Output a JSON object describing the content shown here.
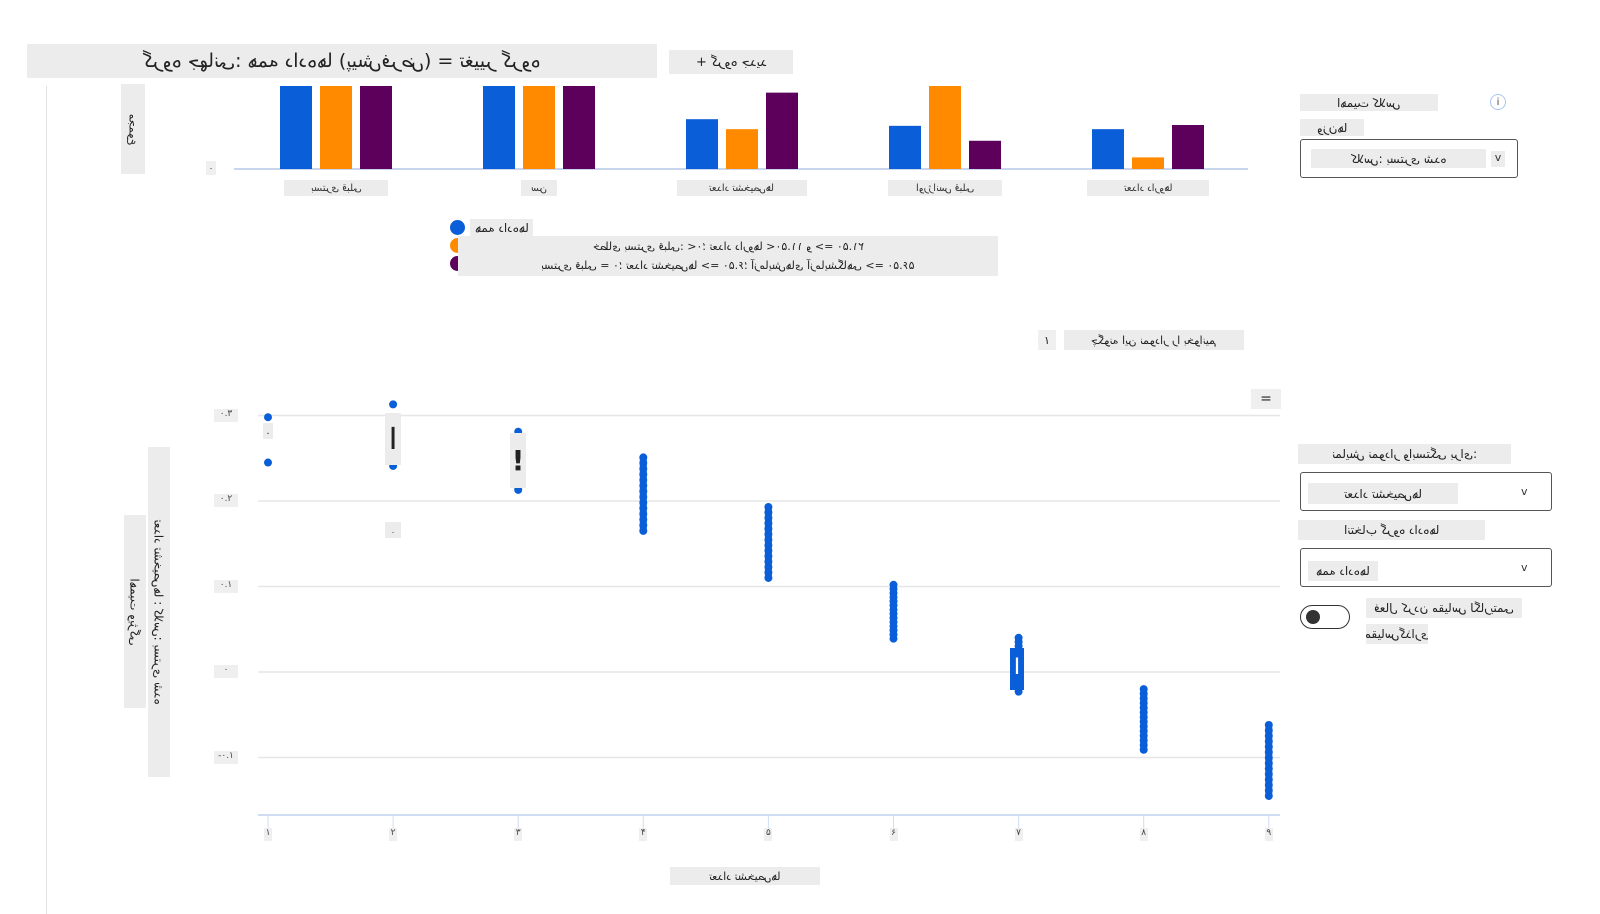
{
  "header": {
    "title": "گروه جهانی: همه داده‌ها (پیش‌فرض) = تغییر گروه",
    "new_group_label": "+ گروه جدید"
  },
  "top_chart": {
    "y_axis_label": "مجموع",
    "zero_label": "۰",
    "legend": [
      {
        "label": "همه داده‌ها",
        "color": "#0a5fd9"
      },
      {
        "label": "خطای بستری قبلی: >۰؛ تعداد داروها >۱۱.۵۰ و <= ۲۱.۵۰",
        "color": "#ff8a00"
      },
      {
        "label": "بستری قبلی = ۰؛ تعداد تشخیص‌ها <= ۶.۵۰؛ آزمایش‌های آزمایشگاهی <= ۵۶.۵۰",
        "color": "#5c005c"
      }
    ]
  },
  "chart_data": [
    {
      "type": "bar",
      "title": "",
      "ylabel": "مجموع",
      "categories": [
        "بستری قبلی",
        "سن",
        "تعداد تشخیص‌ها",
        "اورژانس قبلی",
        "تعداد داروها"
      ],
      "series": [
        {
          "name": "همه داده‌ها",
          "color": "#0a5fd9",
          "values": [
            1.0,
            1.0,
            0.6,
            0.52,
            0.48
          ]
        },
        {
          "name": "خطای بستری قبلی: >۰؛ تعداد داروها >۱۱.۵۰ و <= ۲۱.۵۰",
          "color": "#ff8a00",
          "values": [
            1.0,
            1.0,
            0.48,
            1.0,
            0.14
          ]
        },
        {
          "name": "بستری قبلی = ۰؛ تعداد تشخیص‌ها <= ۶.۵۰؛ آزمایش‌های آزمایشگاهی <= ۵۶.۵۰",
          "color": "#5c005c",
          "values": [
            1.0,
            1.0,
            0.92,
            0.34,
            0.53
          ]
        }
      ],
      "ylim": [
        0,
        1
      ],
      "legend_position": "bottom-left"
    },
    {
      "type": "scatter",
      "title": "",
      "xlabel": "تعداد تشخیص‌ها",
      "ylabel": "تعداد تشخیص‌ها : کلاس: بستری شده",
      "ylabel_secondary": "اهمیت ویژگی",
      "x_ticks": [
        "۱",
        "۲",
        "۳",
        "۴",
        "۵",
        "۶",
        "۷",
        "۸",
        "۹"
      ],
      "y_ticks": [
        {
          "value": 0.3,
          "label": "۰.۳"
        },
        {
          "value": 0.2,
          "label": "۰.۲"
        },
        {
          "value": 0.1,
          "label": "۰.۱"
        },
        {
          "value": 0.0,
          "label": "۰"
        },
        {
          "value": -0.1,
          "label": "-۰.۱"
        }
      ],
      "xlim": [
        1,
        9
      ],
      "ylim": [
        -0.17,
        0.33
      ],
      "grid": true,
      "color": "#0a5fd9",
      "points_ranges": [
        {
          "x": 1,
          "min": 0.245,
          "max": 0.298,
          "sparse": true
        },
        {
          "x": 2,
          "min": 0.241,
          "max": 0.313,
          "sparse": true
        },
        {
          "x": 3,
          "min": 0.213,
          "max": 0.281,
          "sparse": true
        },
        {
          "x": 4,
          "min": 0.165,
          "max": 0.251
        },
        {
          "x": 5,
          "min": 0.11,
          "max": 0.193
        },
        {
          "x": 6,
          "min": 0.039,
          "max": 0.102
        },
        {
          "x": 7,
          "min": -0.023,
          "max": 0.04
        },
        {
          "x": 8,
          "min": -0.091,
          "max": -0.02
        },
        {
          "x": 9,
          "min": -0.145,
          "max": -0.062
        }
      ]
    }
  ],
  "how_to_read": {
    "number": "۱",
    "label": "چگونه این نمودار را بخوانیم"
  },
  "menu_icon": "=",
  "right_panel": {
    "class_importance_label": "اهمیت کلاس",
    "info_icon": "i",
    "weights_label": "وزن‌ها",
    "class_dropdown_value": "کلاس: بستری شده",
    "dependence_label": "نمایش نمودار وابستگی برای:",
    "feature_dropdown_value": "تعداد تشخیص‌ها",
    "select_group_label": "انتخاب گروه داده‌ها",
    "group_dropdown_value": "همه داده‌ها",
    "log_scale_label": "فعال کردن مقیاس لگاریتمی",
    "scaling_label": "مقیاس‌گذاری",
    "chevron": "v"
  },
  "placeholders": {
    "dot": "."
  }
}
